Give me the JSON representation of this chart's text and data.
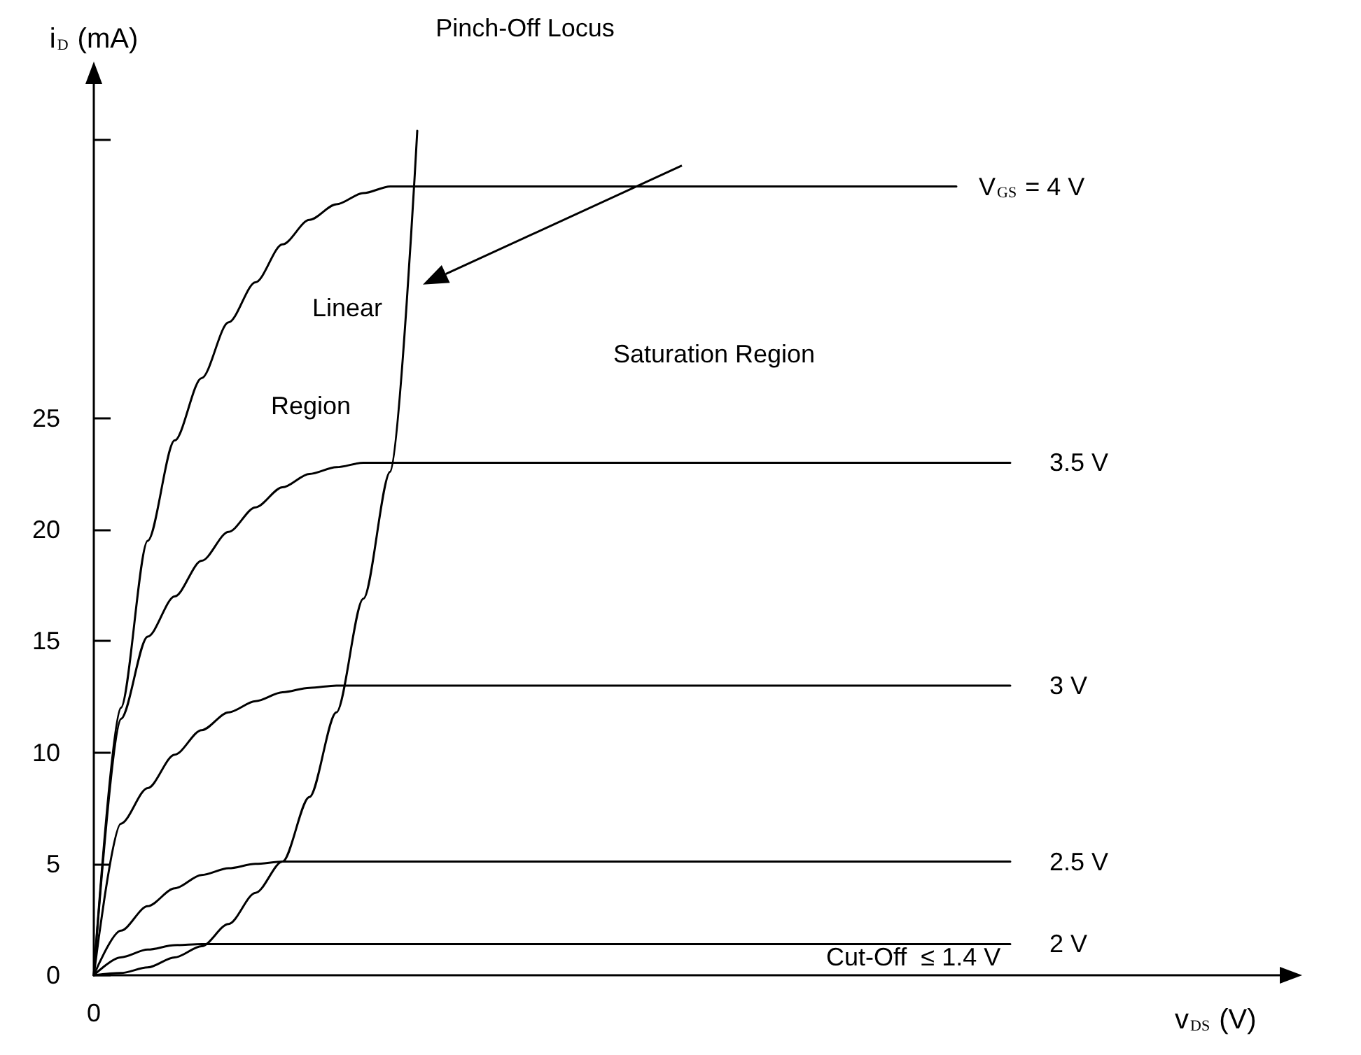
{
  "chart_data": {
    "type": "line",
    "xlabel": "v$_{DS}$ (V)",
    "ylabel": "i$_{D}$ (mA)",
    "categories": [
      "0",
      null,
      null,
      null,
      null,
      null,
      null,
      null,
      null,
      null,
      null,
      null,
      null,
      null,
      null,
      null,
      null,
      null,
      null,
      null,
      null,
      null,
      null,
      null,
      null,
      null,
      null,
      null,
      null,
      null,
      null,
      null,
      null,
      null,
      null,
      null,
      null,
      null,
      null,
      null,
      null,
      null,
      null,
      null,
      null
    ],
    "series": [
      {
        "name": "V$_{GS}$ = 4 V",
        "color": "#000000",
        "values": [
          0,
          12,
          19.5,
          24,
          26.8,
          29.3,
          31.1,
          32.8,
          33.9,
          34.6,
          35.1,
          35.4,
          35.4,
          35.4,
          35.4,
          35.4,
          35.4,
          35.4,
          35.4,
          35.4,
          35.4,
          35.4,
          35.4,
          35.4,
          35.4,
          35.4,
          35.4,
          35.4,
          35.4,
          35.4,
          35.4,
          35.4,
          35.4,
          null,
          null,
          null,
          null,
          null,
          null,
          null,
          null,
          null,
          null,
          null,
          null
        ]
      },
      {
        "name": "3.5 V",
        "color": "#000000",
        "values": [
          0,
          11.5,
          15.2,
          17,
          18.6,
          19.9,
          21,
          21.9,
          22.5,
          22.8,
          23,
          23,
          23,
          23,
          23,
          23,
          23,
          23,
          23,
          23,
          23,
          23,
          23,
          23,
          23,
          23,
          23,
          23,
          23,
          23,
          23,
          23,
          23,
          23,
          23,
          null,
          null,
          null,
          null,
          null,
          null,
          null,
          null,
          null,
          null
        ]
      },
      {
        "name": "3 V",
        "color": "#000000",
        "values": [
          0,
          6.8,
          8.4,
          9.9,
          11,
          11.8,
          12.3,
          12.7,
          12.9,
          13,
          13,
          13,
          13,
          13,
          13,
          13,
          13,
          13,
          13,
          13,
          13,
          13,
          13,
          13,
          13,
          13,
          13,
          13,
          13,
          13,
          13,
          13,
          13,
          13,
          13,
          null,
          null,
          null,
          null,
          null,
          null,
          null,
          null,
          null,
          null
        ]
      },
      {
        "name": "2.5 V",
        "color": "#000000",
        "values": [
          0,
          2,
          3.1,
          3.9,
          4.5,
          4.8,
          5,
          5.1,
          5.1,
          5.1,
          5.1,
          5.1,
          5.1,
          5.1,
          5.1,
          5.1,
          5.1,
          5.1,
          5.1,
          5.1,
          5.1,
          5.1,
          5.1,
          5.1,
          5.1,
          5.1,
          5.1,
          5.1,
          5.1,
          5.1,
          5.1,
          5.1,
          5.1,
          5.1,
          5.1,
          null,
          null,
          null,
          null,
          null,
          null,
          null,
          null,
          null,
          null
        ]
      },
      {
        "name": "2 V",
        "color": "#000000",
        "values": [
          0,
          0.8,
          1.15,
          1.35,
          1.4,
          1.4,
          1.4,
          1.4,
          1.4,
          1.4,
          1.4,
          1.4,
          1.4,
          1.4,
          1.4,
          1.4,
          1.4,
          1.4,
          1.4,
          1.4,
          1.4,
          1.4,
          1.4,
          1.4,
          1.4,
          1.4,
          1.4,
          1.4,
          1.4,
          1.4,
          1.4,
          1.4,
          1.4,
          1.4,
          1.4,
          null,
          null,
          null,
          null,
          null,
          null,
          null,
          null,
          null,
          null
        ]
      },
      {
        "color": "#000000",
        "values": [
          0,
          0.1,
          0.35,
          0.8,
          1.3,
          2.3,
          3.7,
          5.1,
          8,
          11.8,
          16.9,
          22.6,
          37.9,
          null,
          null,
          null,
          null,
          null,
          null,
          null,
          null,
          null,
          null,
          null,
          null,
          null,
          null,
          null,
          null,
          null,
          null,
          null,
          null,
          null,
          null,
          null,
          null,
          null,
          null,
          null,
          null,
          null,
          null,
          null,
          null
        ]
      }
    ],
    "ylim": [
      0,
      40
    ],
    "yticks": [
      0,
      5,
      10,
      15,
      20,
      25,
      {
        "value": 37.5,
        "label": null
      }
    ],
    "annotations": [
      "Pinch-Off Locus",
      "Linear",
      "Region",
      "Saturation Region",
      "Cut-Off  ≤ 1.4 V"
    ],
    "grid": false,
    "legend": false,
    "marker": "none",
    "line_style": "solid"
  }
}
